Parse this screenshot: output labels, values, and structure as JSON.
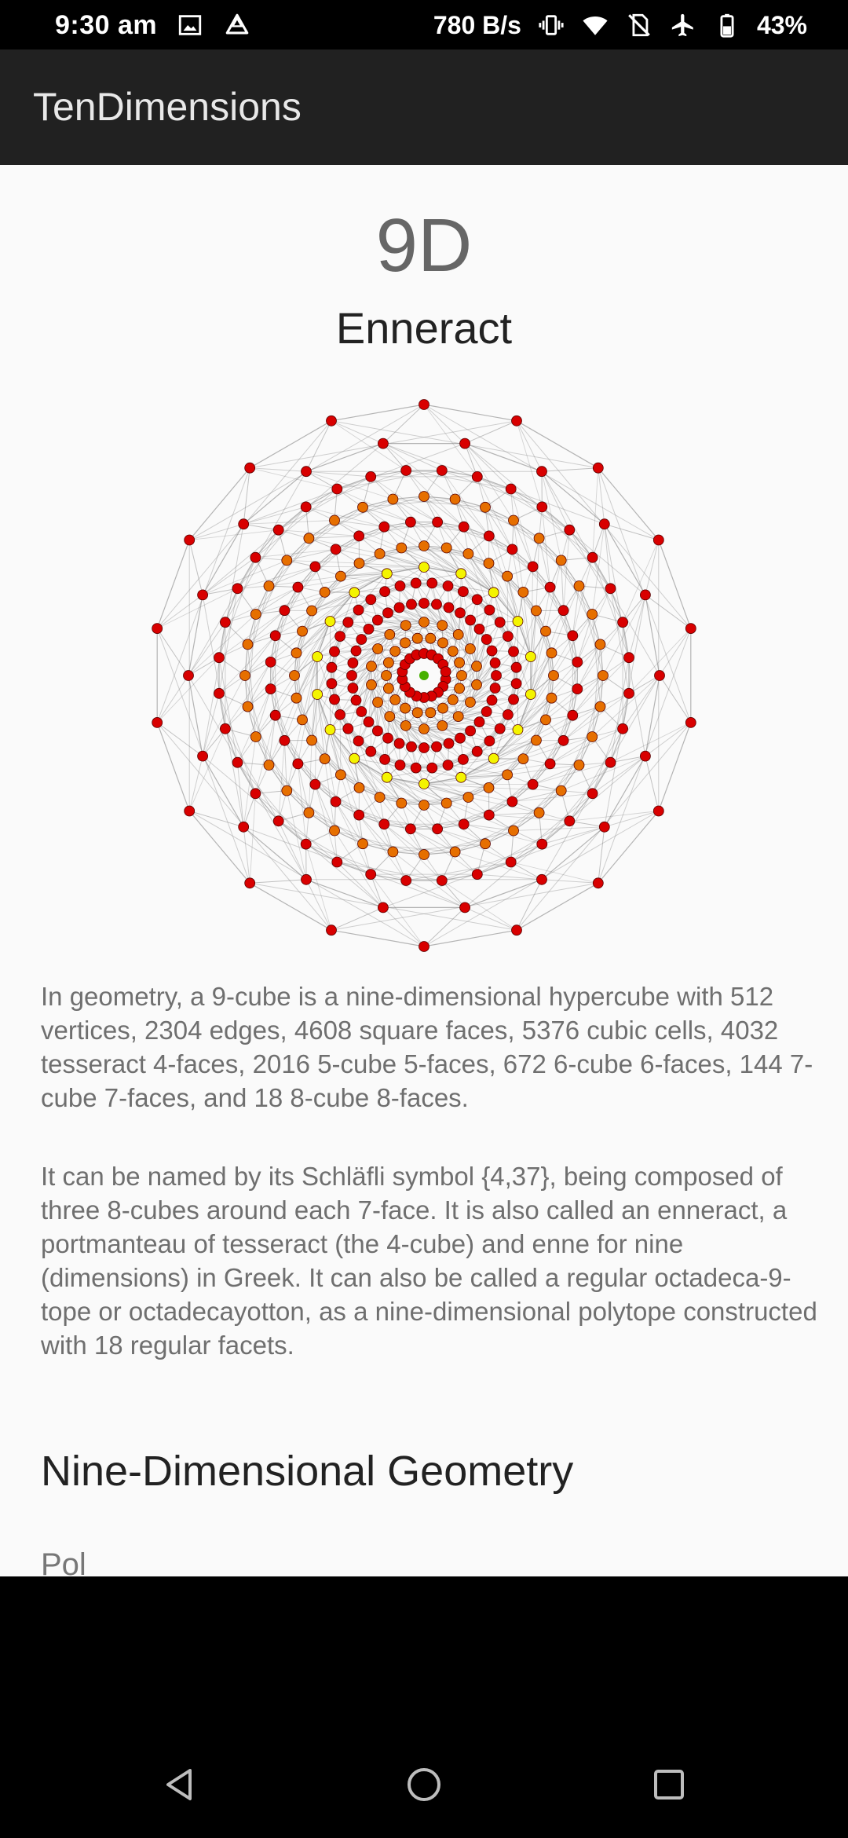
{
  "status_bar": {
    "time": "9:30 am",
    "network_speed": "780 B/s",
    "battery": "43%",
    "icons": [
      "image-icon",
      "drive-icon",
      "vibrate-icon",
      "wifi-icon",
      "no-sim-icon",
      "airplane-icon",
      "battery-icon"
    ]
  },
  "app_bar": {
    "title": "TenDimensions"
  },
  "main": {
    "dimension": "9D",
    "name": "Enneract",
    "figure": {
      "colors": {
        "outer": "#d80000",
        "middle": "#e66f00",
        "inner": "#f4f400",
        "center": "#46b000",
        "edges": "#7a7a7a"
      }
    },
    "paragraphs": [
      "In geometry, a 9-cube is a nine-dimensional hypercube with 512 vertices, 2304 edges, 4608 square faces, 5376 cubic cells, 4032 tesseract 4-faces, 2016 5-cube 5-faces, 672 6-cube 6-faces, 144 7-cube 7-faces, and 18 8-cube 8-faces.",
      "It can be named by its Schläfli symbol {4,37}, being composed of three 8-cubes around each 7-face. It is also called an enneract, a portmanteau of tesseract (the 4-cube) and enne for nine (dimensions) in Greek. It can also be called a regular octadeca-9-tope or octadecayotton, as a nine-dimensional polytope constructed with 18 regular facets."
    ],
    "section_heading": "Nine-Dimensional Geometry",
    "next_text": "Pol"
  },
  "nav_bar": {
    "buttons": [
      "back",
      "home",
      "recents"
    ]
  }
}
